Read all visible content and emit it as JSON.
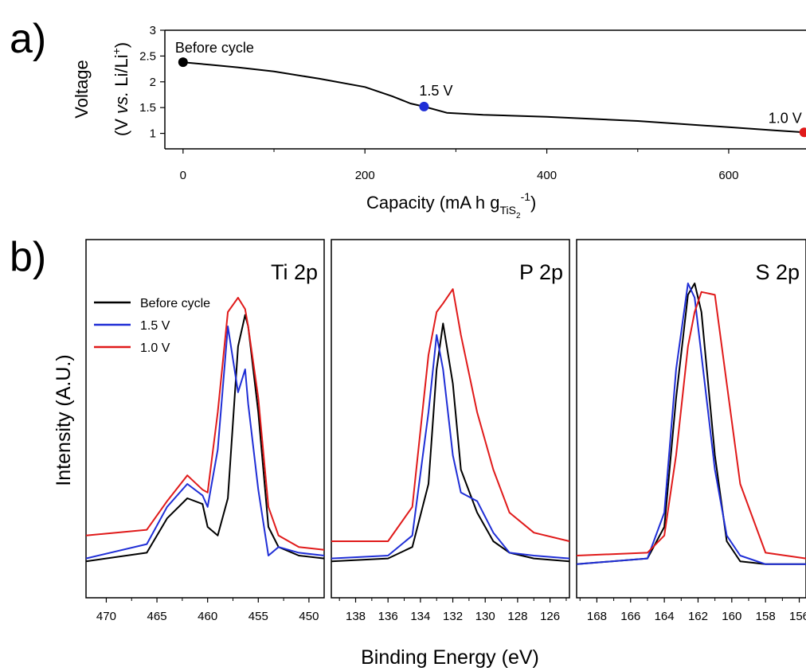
{
  "panel_a_label": "a)",
  "panel_b_label": "b)",
  "xrd_xlabel_main": "Capacity (mA h g",
  "xrd_xlabel_sub": "TiS",
  "xrd_xlabel_subsub": "2",
  "xrd_xlabel_sup": "-1",
  "xrd_xlabel_close": ")",
  "ylabel_a_line1": "Voltage",
  "ylabel_a_line2_pre": "(V ",
  "ylabel_a_line2_vs": "vs.",
  "ylabel_a_line2_post": " Li/Li",
  "ylabel_a_line2_sup": "+",
  "ylabel_a_line2_close": ")",
  "ylabel_b": "Intensity (A.U.)",
  "xlabel_b": "Binding Energy (eV)",
  "colors": {
    "before": "#000000",
    "v15": "#1f2ed6",
    "v10": "#e01a1a"
  },
  "chart_data": [
    {
      "type": "line",
      "xlabel": "Capacity (mA h gTiS2-1)",
      "ylabel": "Voltage (V vs. Li/Li+)",
      "xlim": [
        -20,
        685
      ],
      "ylim": [
        0.7,
        3.0
      ],
      "xticks": [
        0,
        200,
        400,
        600
      ],
      "yticks": [
        1.0,
        1.5,
        2.0,
        2.5,
        3.0
      ],
      "series": [
        {
          "x": [
            0,
            30,
            60,
            100,
            150,
            200,
            230,
            250,
            265,
            290,
            330,
            400,
            500,
            600,
            650,
            683
          ],
          "y": [
            2.38,
            2.33,
            2.28,
            2.2,
            2.06,
            1.9,
            1.72,
            1.58,
            1.52,
            1.4,
            1.36,
            1.32,
            1.24,
            1.12,
            1.06,
            1.02
          ]
        }
      ],
      "markers": [
        {
          "x": 0,
          "y": 2.38,
          "label": "Before cycle",
          "color": "#000000"
        },
        {
          "x": 265,
          "y": 1.52,
          "label": "1.5 V",
          "color": "#1f2ed6"
        },
        {
          "x": 683,
          "y": 1.02,
          "label": "1.0 V",
          "color": "#e01a1a"
        }
      ]
    },
    {
      "type": "line",
      "title": "Ti 2p",
      "xlim": [
        472,
        448.5
      ],
      "ylim": [
        0,
        1
      ],
      "xticks": [
        470,
        465,
        460,
        455,
        450
      ],
      "legend": [
        "Before cycle",
        "1.5 V",
        "1.0 V"
      ],
      "series": [
        {
          "name": "Before cycle",
          "color": "#000000",
          "x": [
            472,
            466,
            464,
            462,
            460.5,
            460,
            459,
            458,
            457,
            456.3,
            456,
            455,
            454,
            453,
            451,
            448.5
          ],
          "y": [
            0.03,
            0.06,
            0.18,
            0.25,
            0.23,
            0.15,
            0.12,
            0.25,
            0.78,
            0.89,
            0.85,
            0.55,
            0.15,
            0.08,
            0.05,
            0.04
          ]
        },
        {
          "name": "1.5 V",
          "color": "#1f2ed6",
          "x": [
            472,
            466,
            464,
            462,
            460.5,
            460,
            459,
            458,
            457,
            456.3,
            456,
            455,
            454,
            453,
            451,
            448.5
          ],
          "y": [
            0.04,
            0.09,
            0.22,
            0.3,
            0.26,
            0.22,
            0.42,
            0.85,
            0.62,
            0.7,
            0.58,
            0.28,
            0.05,
            0.08,
            0.06,
            0.05
          ]
        },
        {
          "name": "1.0 V",
          "color": "#e01a1a",
          "x": [
            472,
            466,
            464,
            462,
            460.5,
            460,
            459,
            458,
            457,
            456.3,
            456,
            455,
            454,
            453,
            451,
            448.5
          ],
          "y": [
            0.12,
            0.14,
            0.24,
            0.33,
            0.28,
            0.27,
            0.55,
            0.9,
            0.95,
            0.91,
            0.85,
            0.6,
            0.22,
            0.12,
            0.08,
            0.07
          ]
        }
      ]
    },
    {
      "type": "line",
      "title": "P 2p",
      "xlim": [
        139.5,
        124.8
      ],
      "ylim": [
        0,
        1
      ],
      "xticks": [
        138,
        136,
        134,
        132,
        130,
        128,
        126
      ],
      "series": [
        {
          "name": "Before cycle",
          "color": "#000000",
          "x": [
            139.5,
            136,
            134.5,
            133.5,
            133,
            132.6,
            132,
            131.5,
            130.5,
            129.5,
            128.5,
            127,
            124.8
          ],
          "y": [
            0.03,
            0.04,
            0.08,
            0.3,
            0.7,
            0.86,
            0.65,
            0.35,
            0.2,
            0.1,
            0.06,
            0.04,
            0.03
          ]
        },
        {
          "name": "1.5 V",
          "color": "#1f2ed6",
          "x": [
            139.5,
            136,
            134.5,
            133.5,
            133,
            132.6,
            132,
            131.5,
            130.5,
            129.5,
            128.5,
            127,
            124.8
          ],
          "y": [
            0.04,
            0.05,
            0.12,
            0.55,
            0.82,
            0.7,
            0.4,
            0.27,
            0.24,
            0.13,
            0.06,
            0.05,
            0.04
          ]
        },
        {
          "name": "1.0 V",
          "color": "#e01a1a",
          "x": [
            139.5,
            136,
            134.5,
            133.5,
            133,
            132.6,
            132,
            131.5,
            130.5,
            129.5,
            128.5,
            127,
            124.8
          ],
          "y": [
            0.1,
            0.1,
            0.22,
            0.75,
            0.9,
            0.93,
            0.98,
            0.82,
            0.55,
            0.35,
            0.2,
            0.13,
            0.1
          ]
        }
      ]
    },
    {
      "type": "line",
      "title": "S 2p",
      "xlim": [
        169.2,
        155.6
      ],
      "ylim": [
        0,
        1
      ],
      "xticks": [
        168,
        166,
        164,
        162,
        160,
        158,
        156
      ],
      "series": [
        {
          "name": "Before cycle",
          "color": "#000000",
          "x": [
            169.2,
            165,
            164,
            163.3,
            162.6,
            162.2,
            161.8,
            161,
            160.3,
            159.5,
            158,
            155.6
          ],
          "y": [
            0.02,
            0.04,
            0.15,
            0.6,
            0.96,
            1.0,
            0.9,
            0.4,
            0.1,
            0.03,
            0.02,
            0.02
          ]
        },
        {
          "name": "1.5 V",
          "color": "#1f2ed6",
          "x": [
            169.2,
            165,
            164,
            163.3,
            162.6,
            162.2,
            161.8,
            161,
            160.3,
            159.5,
            158,
            155.6
          ],
          "y": [
            0.02,
            0.04,
            0.2,
            0.7,
            1.0,
            0.95,
            0.75,
            0.35,
            0.12,
            0.05,
            0.02,
            0.02
          ]
        },
        {
          "name": "1.0 V",
          "color": "#e01a1a",
          "x": [
            169.2,
            165,
            164,
            163.3,
            162.6,
            162.2,
            161.8,
            161,
            160.3,
            159.5,
            158,
            155.6
          ],
          "y": [
            0.05,
            0.06,
            0.12,
            0.4,
            0.78,
            0.9,
            0.97,
            0.96,
            0.65,
            0.3,
            0.06,
            0.04
          ]
        }
      ]
    }
  ]
}
